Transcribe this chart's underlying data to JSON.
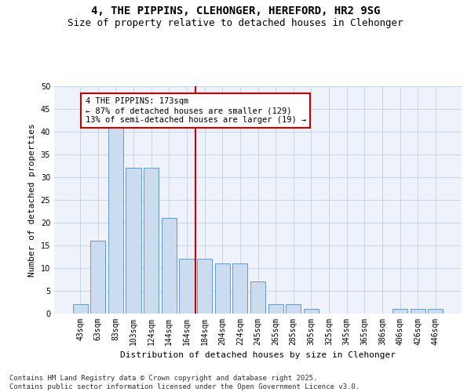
{
  "title_line1": "4, THE PIPPINS, CLEHONGER, HEREFORD, HR2 9SG",
  "title_line2": "Size of property relative to detached houses in Clehonger",
  "xlabel": "Distribution of detached houses by size in Clehonger",
  "ylabel": "Number of detached properties",
  "categories": [
    "43sqm",
    "63sqm",
    "83sqm",
    "103sqm",
    "124sqm",
    "144sqm",
    "164sqm",
    "184sqm",
    "204sqm",
    "224sqm",
    "245sqm",
    "265sqm",
    "285sqm",
    "305sqm",
    "325sqm",
    "345sqm",
    "365sqm",
    "386sqm",
    "406sqm",
    "426sqm",
    "446sqm"
  ],
  "values": [
    2,
    16,
    42,
    32,
    32,
    21,
    12,
    12,
    11,
    11,
    7,
    2,
    2,
    1,
    0,
    0,
    0,
    0,
    1,
    1,
    1
  ],
  "bar_color": "#ccdcef",
  "bar_edge_color": "#6699cc",
  "vline_pos": 6.5,
  "vline_color": "#cc0000",
  "annotation_title": "4 THE PIPPINS: 173sqm",
  "annotation_line2": "← 87% of detached houses are smaller (129)",
  "annotation_line3": "13% of semi-detached houses are larger (19) →",
  "annotation_box_facecolor": "#ffffff",
  "annotation_box_edgecolor": "#cc0000",
  "grid_color": "#c8d4e8",
  "background_color": "#eef2fa",
  "ylim": [
    0,
    50
  ],
  "yticks": [
    0,
    5,
    10,
    15,
    20,
    25,
    30,
    35,
    40,
    45,
    50
  ],
  "title_fontsize": 10,
  "subtitle_fontsize": 9,
  "axis_label_fontsize": 8,
  "tick_fontsize": 7,
  "annotation_fontsize": 7.5,
  "footer_fontsize": 6.5,
  "footer_line1": "Contains HM Land Registry data © Crown copyright and database right 2025.",
  "footer_line2": "Contains public sector information licensed under the Open Government Licence v3.0."
}
